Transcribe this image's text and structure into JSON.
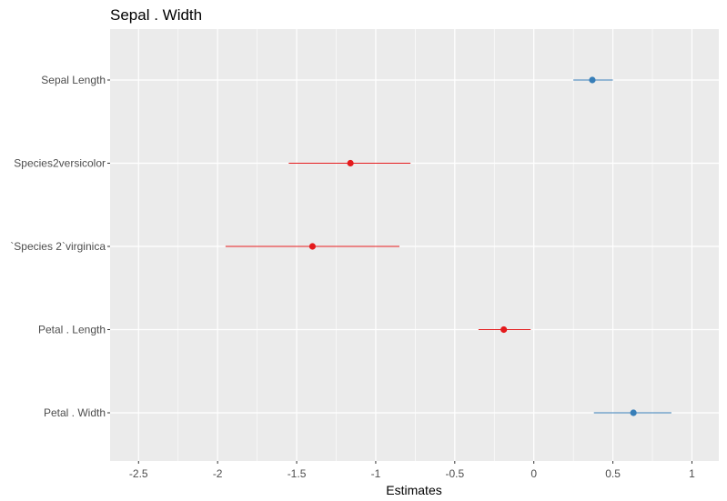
{
  "chart_data": {
    "type": "forest",
    "title": "Sepal . Width",
    "xlabel": "Estimates",
    "ylabel": "",
    "xlim": [
      -2.68,
      1.17
    ],
    "x_ticks": [
      -2.5,
      -2,
      -1.5,
      -1,
      -0.5,
      0,
      0.5,
      1
    ],
    "x_tick_labels": [
      "-2.5",
      "-2",
      "-1.5",
      "-1",
      "-0.5",
      "0",
      "0.5",
      "1"
    ],
    "grid": true,
    "legend": "none",
    "colors": {
      "positive": "#377eb8",
      "negative": "#e41a1c",
      "panel": "#ebebeb",
      "grid": "#ffffff"
    },
    "terms": [
      {
        "label": "Sepal Length",
        "estimate": 0.37,
        "low": 0.25,
        "high": 0.5
      },
      {
        "label": "Species2versicolor",
        "estimate": -1.16,
        "low": -1.55,
        "high": -0.78
      },
      {
        "label": "`Species 2`virginica",
        "estimate": -1.4,
        "low": -1.95,
        "high": -0.85
      },
      {
        "label": "Petal . Length",
        "estimate": -0.19,
        "low": -0.35,
        "high": -0.02
      },
      {
        "label": "Petal . Width",
        "estimate": 0.63,
        "low": 0.38,
        "high": 0.87
      }
    ]
  }
}
